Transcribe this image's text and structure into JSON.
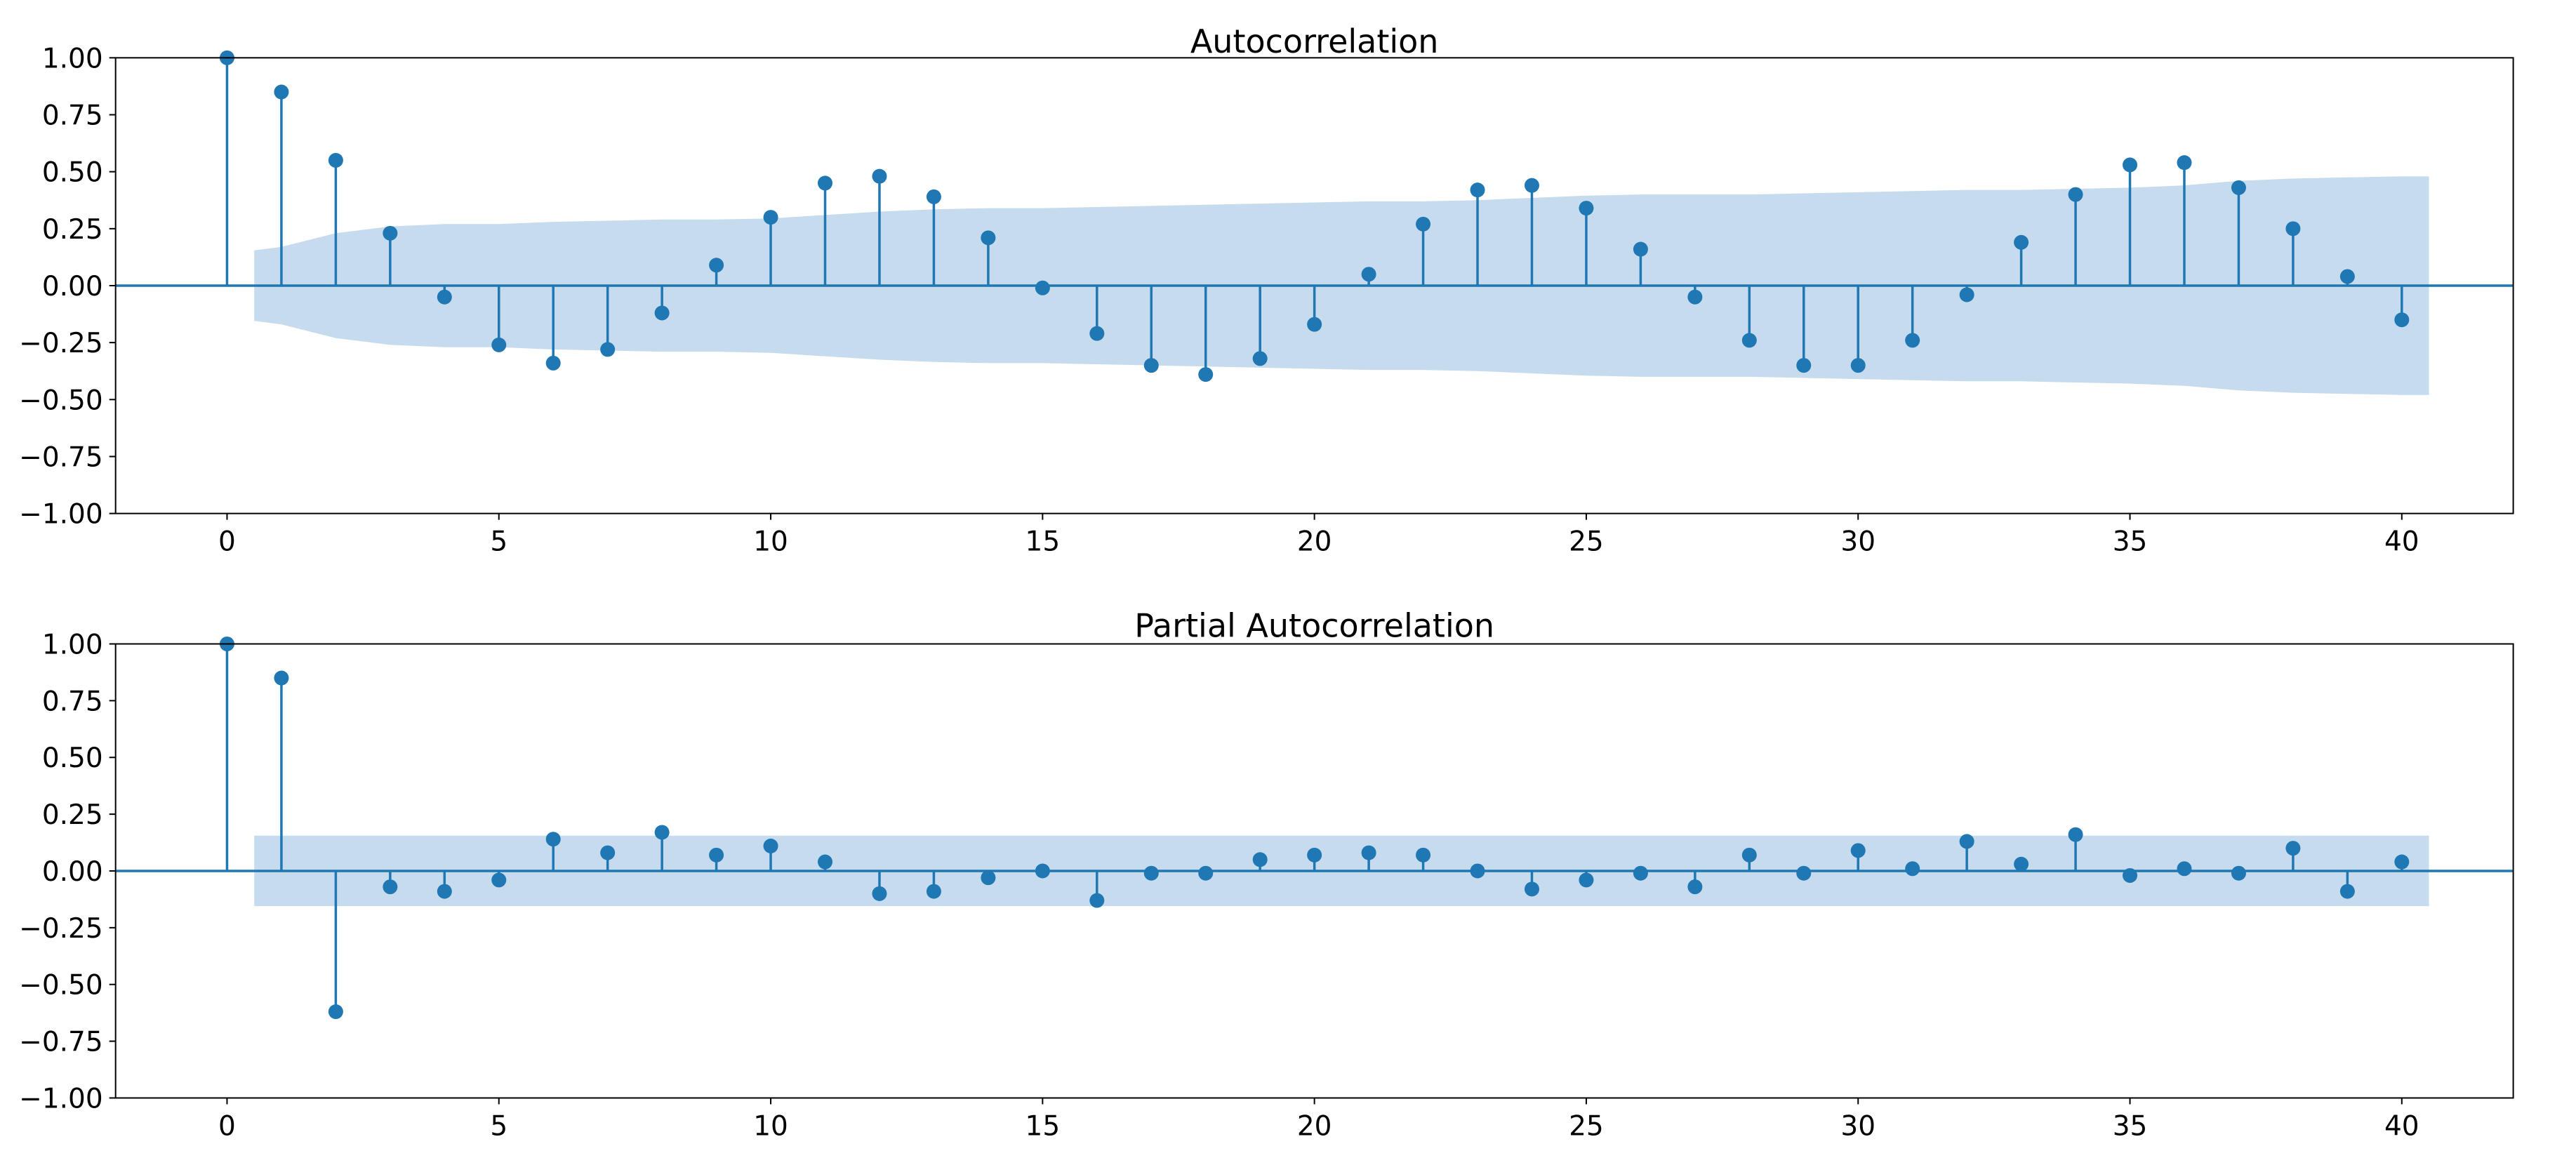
{
  "chart_data": [
    {
      "type": "stem",
      "title": "Autocorrelation",
      "xlabel": "",
      "ylabel": "",
      "xlim": [
        -2.05,
        42.05
      ],
      "ylim": [
        -1.0,
        1.0
      ],
      "xticks": [
        0,
        5,
        10,
        15,
        20,
        25,
        30,
        35,
        40
      ],
      "xtick_labels": [
        "0",
        "5",
        "10",
        "15",
        "20",
        "25",
        "30",
        "35",
        "40"
      ],
      "yticks": [
        1.0,
        0.75,
        0.5,
        0.25,
        0.0,
        -0.25,
        -0.5,
        -0.75,
        -1.0
      ],
      "ytick_labels": [
        "1.00",
        "0.75",
        "0.50",
        "0.25",
        "0.00",
        "−0.25",
        "−0.50",
        "−0.75",
        "−1.00"
      ],
      "grid": false,
      "lags": [
        0,
        1,
        2,
        3,
        4,
        5,
        6,
        7,
        8,
        9,
        10,
        11,
        12,
        13,
        14,
        15,
        16,
        17,
        18,
        19,
        20,
        21,
        22,
        23,
        24,
        25,
        26,
        27,
        28,
        29,
        30,
        31,
        32,
        33,
        34,
        35,
        36,
        37,
        38,
        39,
        40
      ],
      "values": [
        1.0,
        0.85,
        0.55,
        0.23,
        -0.05,
        -0.26,
        -0.34,
        -0.28,
        -0.12,
        0.09,
        0.3,
        0.45,
        0.48,
        0.39,
        0.21,
        -0.01,
        -0.21,
        -0.35,
        -0.39,
        -0.32,
        -0.17,
        0.05,
        0.27,
        0.42,
        0.44,
        0.34,
        0.16,
        -0.05,
        -0.24,
        -0.35,
        -0.35,
        -0.24,
        -0.04,
        0.19,
        0.4,
        0.53,
        0.54,
        0.43,
        0.25,
        0.04,
        -0.15
      ],
      "confidence_band": {
        "x": [
          0.5,
          1,
          2,
          3,
          4,
          5,
          6,
          7,
          8,
          9,
          10,
          11,
          12,
          13,
          14,
          15,
          16,
          17,
          18,
          19,
          20,
          21,
          22,
          23,
          24,
          25,
          26,
          27,
          28,
          29,
          30,
          31,
          32,
          33,
          34,
          35,
          36,
          37,
          38,
          39,
          40,
          40.5
        ],
        "upper": [
          0.155,
          0.17,
          0.23,
          0.26,
          0.27,
          0.27,
          0.28,
          0.285,
          0.29,
          0.29,
          0.295,
          0.31,
          0.325,
          0.335,
          0.34,
          0.34,
          0.345,
          0.35,
          0.355,
          0.36,
          0.365,
          0.37,
          0.37,
          0.375,
          0.385,
          0.395,
          0.4,
          0.4,
          0.4,
          0.405,
          0.41,
          0.415,
          0.42,
          0.42,
          0.425,
          0.43,
          0.44,
          0.46,
          0.47,
          0.475,
          0.48,
          0.48
        ]
      },
      "colors": {
        "stem": "#1f77b4",
        "band": "#c6dbed",
        "axis_line": "#1f77b4"
      }
    },
    {
      "type": "stem",
      "title": "Partial Autocorrelation",
      "xlabel": "",
      "ylabel": "",
      "xlim": [
        -2.05,
        42.05
      ],
      "ylim": [
        -1.0,
        1.0
      ],
      "xticks": [
        0,
        5,
        10,
        15,
        20,
        25,
        30,
        35,
        40
      ],
      "xtick_labels": [
        "0",
        "5",
        "10",
        "15",
        "20",
        "25",
        "30",
        "35",
        "40"
      ],
      "yticks": [
        1.0,
        0.75,
        0.5,
        0.25,
        0.0,
        -0.25,
        -0.5,
        -0.75,
        -1.0
      ],
      "ytick_labels": [
        "1.00",
        "0.75",
        "0.50",
        "0.25",
        "0.00",
        "−0.25",
        "−0.50",
        "−0.75",
        "−1.00"
      ],
      "grid": false,
      "lags": [
        0,
        1,
        2,
        3,
        4,
        5,
        6,
        7,
        8,
        9,
        10,
        11,
        12,
        13,
        14,
        15,
        16,
        17,
        18,
        19,
        20,
        21,
        22,
        23,
        24,
        25,
        26,
        27,
        28,
        29,
        30,
        31,
        32,
        33,
        34,
        35,
        36,
        37,
        38,
        39,
        40
      ],
      "values": [
        1.0,
        0.85,
        -0.62,
        -0.07,
        -0.09,
        -0.04,
        0.14,
        0.08,
        0.17,
        0.07,
        0.11,
        0.04,
        -0.1,
        -0.09,
        -0.03,
        0.0,
        -0.13,
        -0.01,
        -0.01,
        0.05,
        0.07,
        0.08,
        0.07,
        0.0,
        -0.08,
        -0.04,
        -0.01,
        -0.07,
        0.07,
        -0.01,
        0.09,
        0.01,
        0.13,
        0.03,
        0.16,
        -0.02,
        0.01,
        -0.01,
        0.1,
        -0.09,
        0.04
      ],
      "confidence_band": {
        "x": [
          0.5,
          40.5
        ],
        "upper": [
          0.155,
          0.155
        ]
      },
      "colors": {
        "stem": "#1f77b4",
        "band": "#c6dbed",
        "axis_line": "#1f77b4"
      }
    }
  ]
}
